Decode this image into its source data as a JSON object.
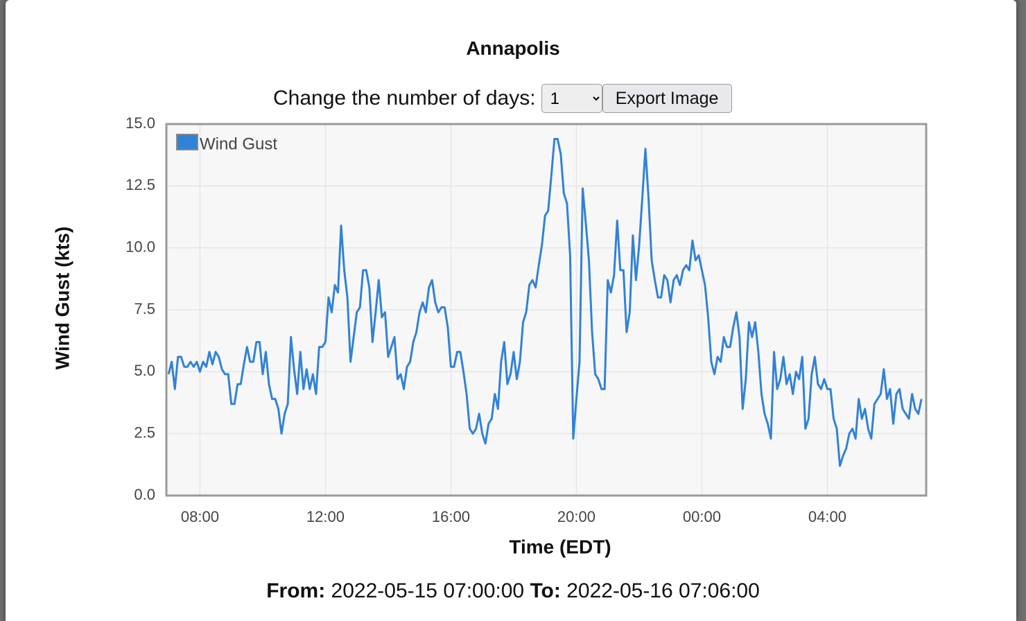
{
  "header": {
    "title": "Annapolis"
  },
  "controls": {
    "days_label": "Change the number of days:",
    "days_value": "1",
    "export_button": "Export Image"
  },
  "chart_data": {
    "type": "line",
    "y_label": "Wind Gust (kts)",
    "x_label": "Time (EDT)",
    "legend": "top-left",
    "grid": true,
    "x": [
      7,
      7.1,
      7.2,
      7.3,
      7.4,
      7.5,
      7.6,
      7.7,
      7.8,
      7.9,
      8,
      8.1,
      8.2,
      8.3,
      8.4,
      8.5,
      8.6,
      8.7,
      8.8,
      8.9,
      9,
      9.1,
      9.2,
      9.3,
      9.4,
      9.5,
      9.6,
      9.7,
      9.8,
      9.9,
      10,
      10.1,
      10.2,
      10.3,
      10.4,
      10.5,
      10.6,
      10.7,
      10.8,
      10.9,
      11,
      11.1,
      11.2,
      11.3,
      11.4,
      11.5,
      11.6,
      11.7,
      11.8,
      11.9,
      12,
      12.1,
      12.2,
      12.3,
      12.4,
      12.5,
      12.6,
      12.7,
      12.8,
      12.9,
      13,
      13.1,
      13.2,
      13.3,
      13.4,
      13.5,
      13.6,
      13.7,
      13.8,
      13.9,
      14,
      14.1,
      14.2,
      14.3,
      14.4,
      14.5,
      14.6,
      14.7,
      14.8,
      14.9,
      15,
      15.1,
      15.2,
      15.3,
      15.4,
      15.5,
      15.6,
      15.7,
      15.8,
      15.9,
      16,
      16.1,
      16.2,
      16.3,
      16.4,
      16.5,
      16.6,
      16.7,
      16.8,
      16.9,
      17,
      17.1,
      17.2,
      17.3,
      17.4,
      17.5,
      17.6,
      17.7,
      17.8,
      17.9,
      18,
      18.1,
      18.2,
      18.3,
      18.4,
      18.5,
      18.6,
      18.7,
      18.8,
      18.9,
      19,
      19.1,
      19.2,
      19.3,
      19.4,
      19.5,
      19.6,
      19.7,
      19.8,
      19.9,
      20,
      20.1,
      20.2,
      20.3,
      20.4,
      20.5,
      20.6,
      20.7,
      20.8,
      20.9,
      21,
      21.1,
      21.2,
      21.3,
      21.4,
      21.5,
      21.6,
      21.7,
      21.8,
      21.9,
      22,
      22.1,
      22.2,
      22.3,
      22.4,
      22.5,
      22.6,
      22.7,
      22.8,
      22.9,
      23,
      23.1,
      23.2,
      23.3,
      23.4,
      23.5,
      23.6,
      23.7,
      23.8,
      23.9,
      24,
      24.1,
      24.2,
      24.3,
      24.4,
      24.5,
      24.6,
      24.7,
      24.8,
      24.9,
      25,
      25.1,
      25.2,
      25.3,
      25.4,
      25.5,
      25.6,
      25.7,
      25.8,
      25.9,
      26,
      26.1,
      26.2,
      26.3,
      26.4,
      26.5,
      26.6,
      26.7,
      26.8,
      26.9,
      27,
      27.1,
      27.2,
      27.3,
      27.4,
      27.5,
      27.6,
      27.7,
      27.8,
      27.9,
      28,
      28.1,
      28.2,
      28.3,
      28.4,
      28.5,
      28.6,
      28.7,
      28.8,
      28.9,
      29,
      29.1,
      29.2,
      29.3,
      29.4,
      29.5,
      29.6,
      29.7,
      29.8,
      29.9,
      30,
      30.1,
      30.2,
      30.3,
      30.4,
      30.5,
      30.6,
      30.7,
      30.8,
      30.9,
      31
    ],
    "series": [
      {
        "name": "Wind Gust",
        "color": "#3182d6",
        "values": [
          4.9,
          5.4,
          4.3,
          5.6,
          5.6,
          5.2,
          5.2,
          5.4,
          5.2,
          5.4,
          5.0,
          5.4,
          5.2,
          5.8,
          5.3,
          5.8,
          5.6,
          5.1,
          4.9,
          4.9,
          3.7,
          3.7,
          4.5,
          4.5,
          5.3,
          6.0,
          5.4,
          5.4,
          6.2,
          6.2,
          4.9,
          5.8,
          4.5,
          3.9,
          3.9,
          3.5,
          2.5,
          3.3,
          3.7,
          6.4,
          5.1,
          4.1,
          5.8,
          4.3,
          5.1,
          4.3,
          4.9,
          4.1,
          6.0,
          6.0,
          6.2,
          8.0,
          7.4,
          8.5,
          8.2,
          10.9,
          9.1,
          8.0,
          5.4,
          6.4,
          7.4,
          7.6,
          9.1,
          9.1,
          8.4,
          6.2,
          7.4,
          8.7,
          7.2,
          7.4,
          5.6,
          6.0,
          6.4,
          4.7,
          4.9,
          4.3,
          5.2,
          5.4,
          6.2,
          6.6,
          7.4,
          7.8,
          7.4,
          8.4,
          8.7,
          7.8,
          7.4,
          7.6,
          7.6,
          6.8,
          5.2,
          5.2,
          5.8,
          5.8,
          5.0,
          4.1,
          2.7,
          2.5,
          2.7,
          3.3,
          2.5,
          2.1,
          2.9,
          3.1,
          4.1,
          3.5,
          5.4,
          6.2,
          4.5,
          4.9,
          5.8,
          4.7,
          5.4,
          7.0,
          7.4,
          8.5,
          8.7,
          8.4,
          9.3,
          10.1,
          11.3,
          11.5,
          12.9,
          14.4,
          14.4,
          13.8,
          12.2,
          11.8,
          9.7,
          2.3,
          3.9,
          5.4,
          12.4,
          11.0,
          9.5,
          6.6,
          4.9,
          4.7,
          4.3,
          4.3,
          8.7,
          8.2,
          8.9,
          11.1,
          9.1,
          9.1,
          6.6,
          7.4,
          10.5,
          8.7,
          10.1,
          12.0,
          14.0,
          12.0,
          9.5,
          8.7,
          8.0,
          8.0,
          8.9,
          8.7,
          7.8,
          8.7,
          8.9,
          8.5,
          9.1,
          9.3,
          9.1,
          10.3,
          9.5,
          9.7,
          9.1,
          8.5,
          7.2,
          5.4,
          4.9,
          5.6,
          5.4,
          6.4,
          6.0,
          6.0,
          6.8,
          7.4,
          6.4,
          3.5,
          4.7,
          7.0,
          6.4,
          7.0,
          5.8,
          4.1,
          3.3,
          2.9,
          2.3,
          5.8,
          4.3,
          4.7,
          5.6,
          4.5,
          4.9,
          4.1,
          5.0,
          4.7,
          5.6,
          2.7,
          3.1,
          4.9,
          5.6,
          4.5,
          4.3,
          4.7,
          4.3,
          4.3,
          3.1,
          2.7,
          1.2,
          1.6,
          1.9,
          2.5,
          2.7,
          2.3,
          3.9,
          3.1,
          3.5,
          2.7,
          2.3,
          3.7,
          3.9,
          4.1,
          5.1,
          3.9,
          4.3,
          2.9,
          4.1,
          4.3,
          3.5,
          3.3,
          3.1,
          4.1,
          3.5,
          3.3,
          3.9
        ]
      }
    ],
    "xlim": [
      6.93,
      31.15
    ],
    "xticks": [
      {
        "value": 8,
        "label": "08:00"
      },
      {
        "value": 12,
        "label": "12:00"
      },
      {
        "value": 16,
        "label": "16:00"
      },
      {
        "value": 20,
        "label": "20:00"
      },
      {
        "value": 24,
        "label": "00:00"
      },
      {
        "value": 28,
        "label": "04:00"
      }
    ],
    "ylim": [
      0,
      15
    ],
    "yticks": [
      {
        "value": 0,
        "label": "0.0"
      },
      2.5,
      {
        "value": 5,
        "label": "5.0"
      },
      7.5,
      {
        "value": 10,
        "label": "10.0"
      },
      12.5,
      {
        "value": 15,
        "label": "15.0"
      }
    ]
  },
  "footer": {
    "from_label": "From:",
    "from_value": "2022-05-15 07:00:00",
    "to_label": "To:",
    "to_value": "2022-05-16 07:06:00"
  }
}
